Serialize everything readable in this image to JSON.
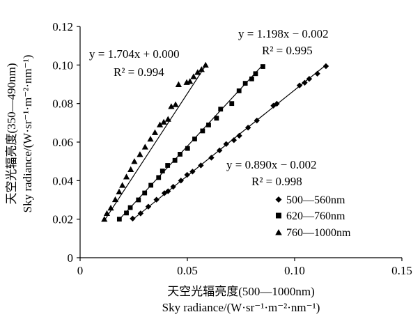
{
  "chart_data": {
    "type": "scatter",
    "xlim": [
      0,
      0.15
    ],
    "ylim": [
      0,
      0.12
    ],
    "x_ticks": [
      "0",
      "0.05",
      "0.10",
      "0.15"
    ],
    "y_ticks": [
      "0",
      "0.02",
      "0.04",
      "0.06",
      "0.08",
      "0.10",
      "0.12"
    ],
    "x_ticks_values": [
      0,
      0.05,
      0.1,
      0.15
    ],
    "y_ticks_values": [
      0,
      0.02,
      0.04,
      0.06,
      0.08,
      0.1,
      0.12
    ],
    "xlabel_cn": "天空光辐亮度(500—1000nm)",
    "xlabel_en": "Sky radiance/(W·sr⁻¹·m⁻²·nm⁻¹)",
    "ylabel_cn": "天空光辐亮度(350—490nm)",
    "ylabel_en": "Sky radiance/(W·sr⁻¹·m⁻²·nm⁻¹)",
    "grid": false,
    "legend_position": "bottom-right",
    "series": [
      {
        "name": "500—560nm",
        "marker": "diamond",
        "equation": "y = 0.890x − 0.002",
        "r2": "R² = 0.998",
        "fit": {
          "slope": 0.89,
          "intercept": -0.002,
          "x_range": [
            0.0245,
            0.1146
          ]
        },
        "x": [
          0.0245,
          0.0282,
          0.0318,
          0.0356,
          0.0393,
          0.041,
          0.0434,
          0.047,
          0.0499,
          0.0524,
          0.0563,
          0.0612,
          0.065,
          0.0681,
          0.0717,
          0.0742,
          0.0783,
          0.0824,
          0.0901,
          0.0917,
          0.1023,
          0.1047,
          0.1068,
          0.1106,
          0.1146
        ],
        "y": [
          0.0203,
          0.023,
          0.0265,
          0.0301,
          0.0335,
          0.0345,
          0.0368,
          0.04,
          0.043,
          0.0447,
          0.0479,
          0.0519,
          0.0557,
          0.059,
          0.061,
          0.0633,
          0.0675,
          0.0712,
          0.0789,
          0.0799,
          0.0894,
          0.0908,
          0.0928,
          0.0955,
          0.0994
        ]
      },
      {
        "name": "620—760nm",
        "marker": "square",
        "equation": "y = 1.198x − 0.002",
        "r2": "R² = 0.995",
        "fit": {
          "slope": 1.198,
          "intercept": -0.002,
          "x_range": [
            0.0183,
            0.0852
          ]
        },
        "x": [
          0.0183,
          0.0216,
          0.0234,
          0.0272,
          0.0301,
          0.033,
          0.0366,
          0.0384,
          0.0408,
          0.0442,
          0.0466,
          0.0501,
          0.0534,
          0.0571,
          0.0599,
          0.0636,
          0.0655,
          0.0707,
          0.0741,
          0.077,
          0.08,
          0.0818,
          0.0852
        ],
        "y": [
          0.02,
          0.0232,
          0.026,
          0.03,
          0.0336,
          0.0376,
          0.0416,
          0.045,
          0.0479,
          0.0505,
          0.0537,
          0.0567,
          0.0616,
          0.0658,
          0.0689,
          0.0724,
          0.0771,
          0.08,
          0.0866,
          0.0905,
          0.0928,
          0.0955,
          0.0992
        ]
      },
      {
        "name": "760—1000nm",
        "marker": "triangle",
        "equation": "y = 1.704x + 0.000",
        "r2": "R² = 0.994",
        "fit": {
          "slope": 1.704,
          "intercept": 0.0,
          "x_range": [
            0.0113,
            0.0585
          ]
        },
        "x": [
          0.0113,
          0.0125,
          0.0143,
          0.0164,
          0.0182,
          0.0197,
          0.0216,
          0.0236,
          0.0253,
          0.0279,
          0.0303,
          0.0328,
          0.0349,
          0.0372,
          0.039,
          0.041,
          0.0425,
          0.0445,
          0.0459,
          0.0497,
          0.0512,
          0.0529,
          0.0548,
          0.0566,
          0.0585
        ],
        "y": [
          0.02,
          0.023,
          0.0258,
          0.0302,
          0.0342,
          0.0376,
          0.042,
          0.0458,
          0.05,
          0.0536,
          0.0575,
          0.0616,
          0.065,
          0.069,
          0.0704,
          0.0719,
          0.0785,
          0.0795,
          0.0899,
          0.091,
          0.0915,
          0.094,
          0.0962,
          0.0977,
          0.1
        ]
      }
    ]
  }
}
